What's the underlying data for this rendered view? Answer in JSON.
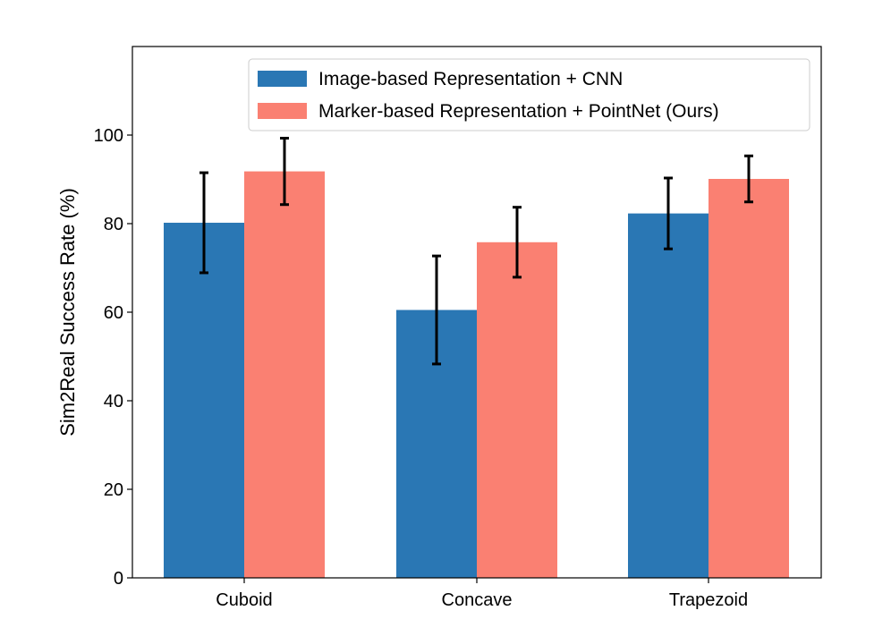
{
  "chart_data": {
    "type": "bar",
    "categories": [
      "Cuboid",
      "Concave",
      "Trapezoid"
    ],
    "series": [
      {
        "name": "Image-based Representation + CNN",
        "color": "#2a77b4",
        "values": [
          80.2,
          60.5,
          82.3
        ],
        "errors": [
          11.3,
          12.2,
          8.0
        ]
      },
      {
        "name": "Marker-based Representation + PointNet (Ours)",
        "color": "#fa8072",
        "values": [
          91.8,
          75.8,
          90.1
        ],
        "errors": [
          7.5,
          7.9,
          5.2
        ]
      }
    ],
    "title": "",
    "xlabel": "",
    "ylabel": "Sim2Real Success Rate (%)",
    "ylim": [
      0,
      100
    ],
    "yticks": [
      0,
      20,
      40,
      60,
      80,
      100
    ],
    "grid": false,
    "legend_position": "top-right"
  }
}
